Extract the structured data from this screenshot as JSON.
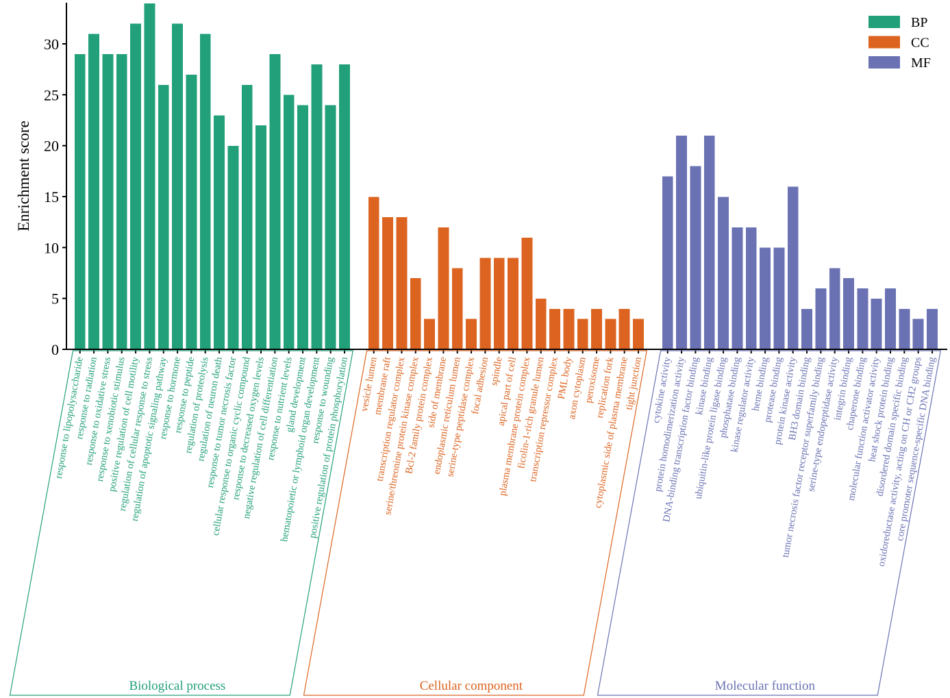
{
  "chart_data": {
    "type": "bar",
    "title": "",
    "xlabel": "",
    "ylabel": "Enrichment score",
    "ylim": [
      0,
      34
    ],
    "yticks": [
      0,
      5,
      10,
      15,
      20,
      25,
      30
    ],
    "grid": false,
    "legend": {
      "placement": "top-right",
      "entries": [
        {
          "key": "BP",
          "label": "BP",
          "color": "#22a07a"
        },
        {
          "key": "CC",
          "label": "CC",
          "color": "#dc6420"
        },
        {
          "key": "MF",
          "label": "MF",
          "color": "#6a72b3"
        }
      ]
    },
    "series": [
      {
        "name": "BP",
        "group_title": "Biological process",
        "color": "#22a07a",
        "categories": [
          "response to lipopolysaccharide",
          "response to radiation",
          "response to oxidative stress",
          "response to xenobiotic stimulus",
          "positive regulation of cell motility",
          "regulation of cellular response to stress",
          "regulation of apoptotic signaling pathway",
          "response to hormone",
          "response to peptide",
          "regulation of proteolysis",
          "regulation of neuron death",
          "response to tumor necrosis factor",
          "cellular response to organic cyclic compound",
          "response to decreased oxygen levels",
          "negative regulation of cell differentiation",
          "response to nutrient levels",
          "gland development",
          "hematopoietic or lymphoid organ development",
          "response to wounding",
          "positive regulation of protein phosphorylation"
        ],
        "values": [
          29,
          31,
          29,
          29,
          32,
          34,
          26,
          32,
          27,
          31,
          23,
          20,
          26,
          22,
          29,
          25,
          24,
          28,
          24,
          28
        ]
      },
      {
        "name": "CC",
        "group_title": "Cellular component",
        "color": "#dc6420",
        "categories": [
          "vesicle lumen",
          "membrane raft",
          "transcription regulator complex",
          "serine/threonine protein kinase complex",
          "Bcl-2 family protein complex",
          "side of membrane",
          "endoplasmic reticulum lumen",
          "serine-type peptidase complex",
          "focal adhesion",
          "spindle",
          "apical part of cell",
          "plasma membrane protein complex",
          "ficolin-1-rich granule lumen",
          "transcription repressor complex",
          "PML body",
          "axon cytoplasm",
          "peroxisome",
          "replication fork",
          "cytoplasmic side of plasma membrane",
          "tight junction"
        ],
        "values": [
          15,
          13,
          13,
          7,
          3,
          12,
          8,
          3,
          9,
          9,
          9,
          11,
          5,
          4,
          4,
          3,
          4,
          3,
          4,
          3
        ]
      },
      {
        "name": "MF",
        "group_title": "Molecular function",
        "color": "#6a72b3",
        "categories": [
          "cytokine activity",
          "protein homodimerization activity",
          "DNA-binding transcription factor binding",
          "kinase binding",
          "ubiquitin-like protein ligase binding",
          "phosphatase binding",
          "kinase regulator activity",
          "heme binding",
          "protease binding",
          "protein kinase activity",
          "BH3 domain binding",
          "tumor necrosis factor receptor superfamily binding",
          "serine-type endopeptidase activity",
          "integrin binding",
          "chaperone binding",
          "molecular function activator activity",
          "heat shock protein binding",
          "disordered domain specific binding",
          "oxidoreductase activity, acting on CH or CH2 groups",
          "core promoter sequence-specific DNA binding"
        ],
        "values": [
          17,
          21,
          18,
          21,
          15,
          12,
          12,
          10,
          10,
          16,
          4,
          6,
          8,
          7,
          6,
          5,
          6,
          4,
          3,
          4
        ]
      }
    ]
  }
}
